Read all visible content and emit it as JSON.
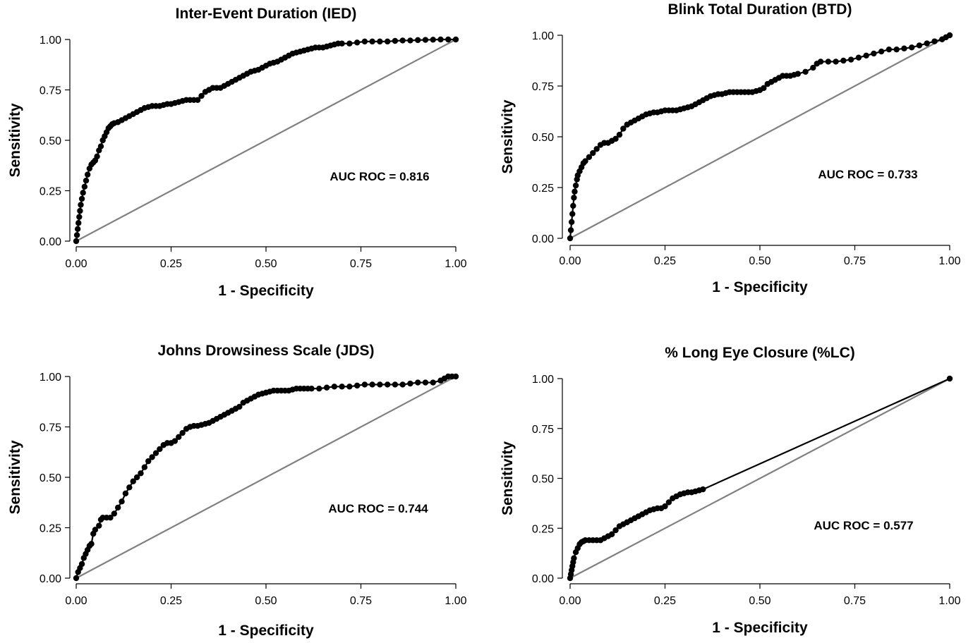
{
  "chart_data": [
    {
      "type": "line",
      "title": "Inter-Event Duration (IED)",
      "xlabel": "1 - Specificity",
      "ylabel": "Sensitivity",
      "xlim": [
        0,
        1
      ],
      "ylim": [
        0,
        1
      ],
      "xticks": [
        "0.00",
        "0.25",
        "0.50",
        "0.75",
        "1.00"
      ],
      "yticks": [
        "0.00",
        "0.25",
        "0.50",
        "0.75",
        "1.00"
      ],
      "annotation": "AUC ROC = 0.816",
      "grid": false,
      "reference_color": "#808080",
      "curve_color": "#000000",
      "series": [
        {
          "x": [
            0,
            0.002,
            0.004,
            0.006,
            0.008,
            0.01,
            0.012,
            0.015,
            0.018,
            0.022,
            0.026,
            0.03,
            0.035,
            0.04,
            0.045,
            0.05,
            0.055,
            0.06,
            0.065,
            0.07,
            0.075,
            0.08,
            0.085,
            0.09,
            0.095,
            0.1,
            0.11,
            0.12,
            0.13,
            0.14,
            0.15,
            0.16,
            0.17,
            0.18,
            0.19,
            0.2,
            0.21,
            0.22,
            0.23,
            0.24,
            0.25,
            0.26,
            0.27,
            0.28,
            0.29,
            0.3,
            0.31,
            0.32,
            0.33,
            0.34,
            0.35,
            0.36,
            0.37,
            0.38,
            0.39,
            0.4,
            0.41,
            0.42,
            0.43,
            0.44,
            0.45,
            0.46,
            0.47,
            0.48,
            0.49,
            0.5,
            0.51,
            0.52,
            0.53,
            0.54,
            0.55,
            0.56,
            0.57,
            0.58,
            0.59,
            0.6,
            0.61,
            0.62,
            0.63,
            0.64,
            0.65,
            0.66,
            0.67,
            0.68,
            0.69,
            0.7,
            0.72,
            0.74,
            0.76,
            0.78,
            0.8,
            0.82,
            0.84,
            0.86,
            0.88,
            0.9,
            0.92,
            0.94,
            0.96,
            0.98,
            1.0
          ],
          "y": [
            0,
            0.03,
            0.06,
            0.09,
            0.12,
            0.15,
            0.18,
            0.21,
            0.24,
            0.27,
            0.3,
            0.33,
            0.36,
            0.38,
            0.39,
            0.4,
            0.42,
            0.45,
            0.47,
            0.5,
            0.52,
            0.54,
            0.56,
            0.57,
            0.58,
            0.585,
            0.59,
            0.6,
            0.61,
            0.62,
            0.63,
            0.64,
            0.65,
            0.66,
            0.665,
            0.67,
            0.67,
            0.67,
            0.675,
            0.68,
            0.68,
            0.685,
            0.69,
            0.695,
            0.7,
            0.7,
            0.7,
            0.7,
            0.72,
            0.74,
            0.75,
            0.76,
            0.76,
            0.76,
            0.77,
            0.78,
            0.79,
            0.8,
            0.81,
            0.82,
            0.83,
            0.84,
            0.845,
            0.85,
            0.86,
            0.87,
            0.88,
            0.885,
            0.89,
            0.9,
            0.91,
            0.92,
            0.93,
            0.935,
            0.94,
            0.945,
            0.95,
            0.955,
            0.96,
            0.96,
            0.96,
            0.965,
            0.97,
            0.975,
            0.98,
            0.98,
            0.98,
            0.985,
            0.99,
            0.99,
            0.99,
            0.99,
            0.993,
            0.995,
            0.995,
            0.997,
            0.998,
            0.999,
            1.0,
            1.0,
            1.0
          ]
        }
      ]
    },
    {
      "type": "line",
      "title": "Blink Total Duration (BTD)",
      "xlabel": "1 - Specificity",
      "ylabel": "Sensitivity",
      "xlim": [
        0,
        1
      ],
      "ylim": [
        0,
        1
      ],
      "xticks": [
        "0.00",
        "0.25",
        "0.50",
        "0.75",
        "1.00"
      ],
      "yticks": [
        "0.00",
        "0.25",
        "0.50",
        "0.75",
        "1.00"
      ],
      "annotation": "AUC ROC = 0.733",
      "grid": false,
      "reference_color": "#808080",
      "curve_color": "#000000",
      "series": [
        {
          "x": [
            0,
            0.002,
            0.004,
            0.006,
            0.008,
            0.01,
            0.012,
            0.015,
            0.018,
            0.02,
            0.025,
            0.03,
            0.035,
            0.04,
            0.05,
            0.06,
            0.07,
            0.08,
            0.09,
            0.1,
            0.11,
            0.12,
            0.13,
            0.14,
            0.15,
            0.16,
            0.17,
            0.18,
            0.19,
            0.2,
            0.21,
            0.22,
            0.23,
            0.24,
            0.25,
            0.26,
            0.27,
            0.28,
            0.29,
            0.3,
            0.31,
            0.32,
            0.33,
            0.34,
            0.35,
            0.36,
            0.37,
            0.38,
            0.39,
            0.4,
            0.41,
            0.42,
            0.43,
            0.44,
            0.45,
            0.46,
            0.47,
            0.48,
            0.49,
            0.5,
            0.51,
            0.52,
            0.53,
            0.54,
            0.55,
            0.56,
            0.57,
            0.58,
            0.59,
            0.6,
            0.62,
            0.64,
            0.65,
            0.66,
            0.68,
            0.7,
            0.72,
            0.74,
            0.76,
            0.78,
            0.8,
            0.82,
            0.84,
            0.86,
            0.88,
            0.9,
            0.92,
            0.94,
            0.96,
            0.98,
            0.99,
            1.0
          ],
          "y": [
            0,
            0.04,
            0.08,
            0.12,
            0.16,
            0.2,
            0.23,
            0.26,
            0.29,
            0.31,
            0.33,
            0.35,
            0.37,
            0.38,
            0.4,
            0.42,
            0.44,
            0.46,
            0.47,
            0.47,
            0.48,
            0.49,
            0.51,
            0.54,
            0.56,
            0.57,
            0.58,
            0.59,
            0.6,
            0.61,
            0.615,
            0.62,
            0.62,
            0.625,
            0.63,
            0.63,
            0.63,
            0.63,
            0.635,
            0.64,
            0.645,
            0.65,
            0.66,
            0.67,
            0.68,
            0.69,
            0.7,
            0.705,
            0.71,
            0.71,
            0.715,
            0.72,
            0.72,
            0.72,
            0.72,
            0.72,
            0.72,
            0.72,
            0.725,
            0.73,
            0.74,
            0.76,
            0.77,
            0.78,
            0.79,
            0.8,
            0.8,
            0.8,
            0.805,
            0.81,
            0.82,
            0.84,
            0.86,
            0.87,
            0.87,
            0.87,
            0.875,
            0.88,
            0.89,
            0.9,
            0.91,
            0.92,
            0.93,
            0.93,
            0.935,
            0.94,
            0.95,
            0.96,
            0.97,
            0.98,
            0.99,
            1.0
          ]
        }
      ]
    },
    {
      "type": "line",
      "title": "Johns Drowsiness Scale (JDS)",
      "xlabel": "1 - Specificity",
      "ylabel": "Sensitivity",
      "xlim": [
        0,
        1
      ],
      "ylim": [
        0,
        1
      ],
      "xticks": [
        "0.00",
        "0.25",
        "0.50",
        "0.75",
        "1.00"
      ],
      "yticks": [
        "0.00",
        "0.25",
        "0.50",
        "0.75",
        "1.00"
      ],
      "annotation": "AUC ROC = 0.744",
      "grid": false,
      "reference_color": "#808080",
      "curve_color": "#000000",
      "series": [
        {
          "x": [
            0,
            0.005,
            0.01,
            0.015,
            0.02,
            0.025,
            0.03,
            0.035,
            0.04,
            0.045,
            0.05,
            0.06,
            0.065,
            0.07,
            0.08,
            0.09,
            0.1,
            0.11,
            0.12,
            0.13,
            0.14,
            0.15,
            0.16,
            0.17,
            0.18,
            0.19,
            0.2,
            0.21,
            0.22,
            0.23,
            0.24,
            0.25,
            0.26,
            0.27,
            0.28,
            0.29,
            0.3,
            0.31,
            0.32,
            0.33,
            0.34,
            0.35,
            0.36,
            0.37,
            0.38,
            0.39,
            0.4,
            0.41,
            0.42,
            0.43,
            0.44,
            0.45,
            0.46,
            0.47,
            0.48,
            0.49,
            0.5,
            0.51,
            0.52,
            0.53,
            0.54,
            0.55,
            0.56,
            0.57,
            0.58,
            0.59,
            0.6,
            0.61,
            0.62,
            0.64,
            0.66,
            0.68,
            0.7,
            0.72,
            0.74,
            0.76,
            0.78,
            0.8,
            0.82,
            0.84,
            0.86,
            0.88,
            0.9,
            0.92,
            0.94,
            0.96,
            0.97,
            0.98,
            0.99,
            1.0
          ],
          "y": [
            0,
            0.03,
            0.05,
            0.07,
            0.1,
            0.12,
            0.14,
            0.16,
            0.17,
            0.22,
            0.24,
            0.26,
            0.29,
            0.3,
            0.3,
            0.3,
            0.32,
            0.35,
            0.38,
            0.42,
            0.45,
            0.48,
            0.5,
            0.52,
            0.55,
            0.58,
            0.6,
            0.62,
            0.64,
            0.66,
            0.67,
            0.67,
            0.68,
            0.7,
            0.72,
            0.74,
            0.75,
            0.755,
            0.755,
            0.76,
            0.765,
            0.77,
            0.78,
            0.79,
            0.8,
            0.81,
            0.82,
            0.83,
            0.84,
            0.85,
            0.87,
            0.88,
            0.89,
            0.9,
            0.91,
            0.915,
            0.92,
            0.925,
            0.93,
            0.93,
            0.93,
            0.93,
            0.93,
            0.935,
            0.94,
            0.94,
            0.94,
            0.94,
            0.94,
            0.94,
            0.945,
            0.95,
            0.95,
            0.95,
            0.955,
            0.96,
            0.96,
            0.96,
            0.96,
            0.96,
            0.96,
            0.965,
            0.97,
            0.97,
            0.97,
            0.98,
            0.99,
            1.0,
            1.0,
            1.0
          ]
        }
      ]
    },
    {
      "type": "line",
      "title": "% Long Eye Closure (%LC)",
      "xlabel": "1 - Specificity",
      "ylabel": "Sensitivity",
      "xlim": [
        0,
        1
      ],
      "ylim": [
        0,
        1
      ],
      "xticks": [
        "0.00",
        "0.25",
        "0.50",
        "0.75",
        "1.00"
      ],
      "yticks": [
        "0.00",
        "0.25",
        "0.50",
        "0.75",
        "1.00"
      ],
      "annotation": "AUC ROC = 0.577",
      "grid": false,
      "reference_color": "#808080",
      "curve_color": "#000000",
      "series": [
        {
          "x": [
            0,
            0.002,
            0.004,
            0.006,
            0.008,
            0.01,
            0.015,
            0.02,
            0.025,
            0.03,
            0.035,
            0.04,
            0.05,
            0.06,
            0.07,
            0.08,
            0.09,
            0.1,
            0.11,
            0.12,
            0.13,
            0.14,
            0.15,
            0.16,
            0.17,
            0.18,
            0.19,
            0.2,
            0.21,
            0.22,
            0.23,
            0.24,
            0.25,
            0.26,
            0.27,
            0.28,
            0.29,
            0.3,
            0.31,
            0.32,
            0.33,
            0.34,
            0.35,
            1.0
          ],
          "y": [
            0,
            0.02,
            0.04,
            0.06,
            0.08,
            0.1,
            0.13,
            0.15,
            0.17,
            0.18,
            0.185,
            0.19,
            0.19,
            0.19,
            0.19,
            0.19,
            0.2,
            0.21,
            0.22,
            0.24,
            0.26,
            0.27,
            0.28,
            0.29,
            0.3,
            0.31,
            0.32,
            0.33,
            0.34,
            0.345,
            0.35,
            0.35,
            0.36,
            0.38,
            0.4,
            0.41,
            0.42,
            0.425,
            0.43,
            0.43,
            0.435,
            0.44,
            0.445,
            1.0
          ]
        }
      ]
    }
  ]
}
